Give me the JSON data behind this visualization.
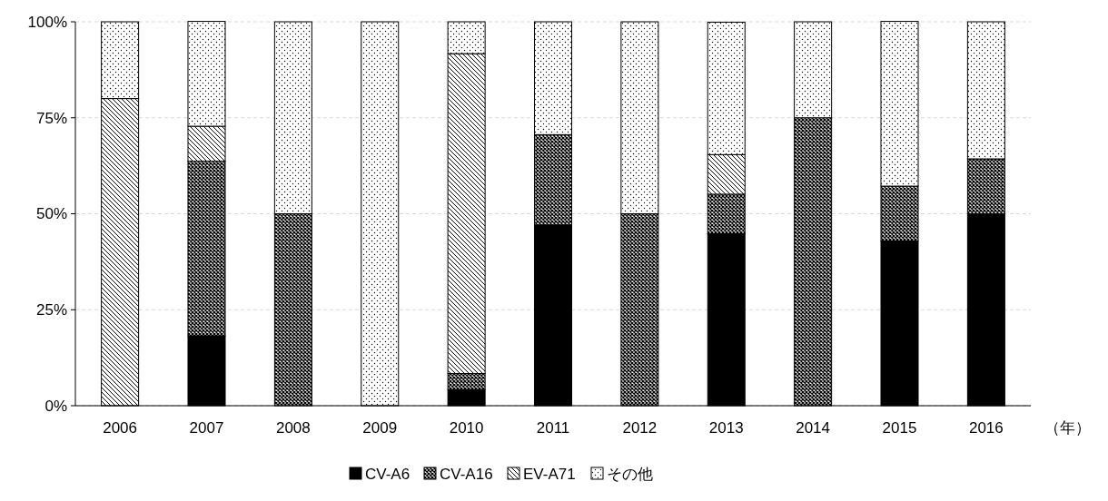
{
  "chart_data": {
    "type": "bar",
    "stacked": true,
    "categories": [
      "2006",
      "2007",
      "2008",
      "2009",
      "2010",
      "2011",
      "2012",
      "2013",
      "2014",
      "2015",
      "2016"
    ],
    "series": [
      {
        "name": "CV-A6",
        "color": "#000000",
        "values": [
          0,
          18.2,
          0,
          0,
          4.2,
          47.1,
          0,
          44.8,
          0,
          42.9,
          50
        ]
      },
      {
        "name": "CV-A16",
        "color": "#000000",
        "values": [
          0,
          45.5,
          50,
          0,
          4.2,
          23.5,
          50,
          10.3,
          75,
          14.3,
          14.3
        ]
      },
      {
        "name": "EV-A71",
        "color": "#000000",
        "values": [
          80,
          9.1,
          0,
          0,
          83.3,
          0,
          0,
          10.3,
          0,
          0,
          0
        ]
      },
      {
        "name": "その他",
        "color": "#000000",
        "values": [
          20,
          27.3,
          50,
          100,
          8.3,
          29.4,
          50,
          34.5,
          25,
          42.9,
          35.7
        ]
      }
    ],
    "ylim": [
      0,
      100
    ],
    "yticks": [
      {
        "value": 0,
        "label": "0%"
      },
      {
        "value": 25,
        "label": "25%"
      },
      {
        "value": 50,
        "label": "50%"
      },
      {
        "value": 75,
        "label": "75%"
      },
      {
        "value": 100,
        "label": "100%"
      }
    ],
    "xlabel": "（年）",
    "grid": "y",
    "legend": "bottom"
  }
}
